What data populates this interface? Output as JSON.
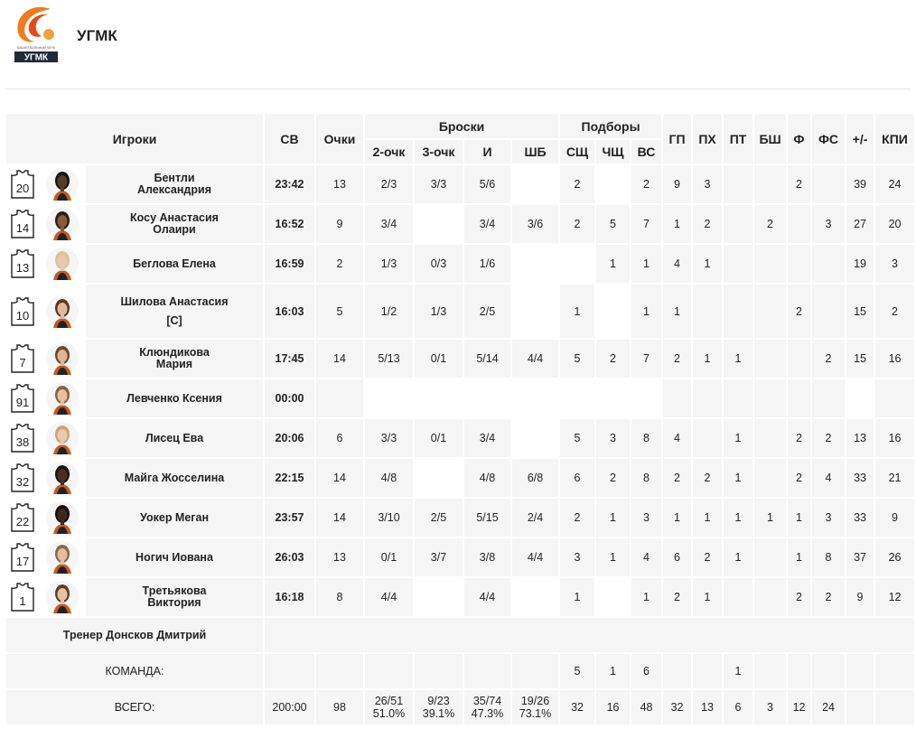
{
  "team": {
    "name": "УГМК",
    "logo_text_small": "БАСКЕТБОЛЬНЫЙ КЛУБ",
    "logo_text": "УГМК"
  },
  "columns": {
    "players": "Игроки",
    "min": "СВ",
    "pts": "Очки",
    "shots": "Броски",
    "rebounds": "Подборы",
    "two": "2-очк",
    "three": "3-очк",
    "fg": "И",
    "ft": "ШБ",
    "oreb": "СЩ",
    "dreb": "ЧЩ",
    "treb": "ВС",
    "ast": "ГП",
    "to": "ПХ",
    "stl": "ПТ",
    "blk": "БШ",
    "pf": "Ф",
    "fd": "ФС",
    "pm": "+/-",
    "eff": "КПИ"
  },
  "players": [
    {
      "num": "20",
      "name1": "Бентли",
      "name2": "Александрия",
      "captain": "",
      "min": "23:42",
      "pts": "13",
      "two": "2/3",
      "three": "3/3",
      "fg": "5/6",
      "ft": "",
      "oreb": "2",
      "dreb": "",
      "treb": "2",
      "ast": "9",
      "to": "3",
      "stl": "",
      "blk": "",
      "pf": "2",
      "fd": "",
      "pm": "39",
      "eff": "24",
      "skin": "#5a3a28",
      "hair": "#1a1410"
    },
    {
      "num": "14",
      "name1": "Косу Анастасия",
      "name2": "Олаири",
      "captain": "",
      "min": "16:52",
      "pts": "9",
      "two": "3/4",
      "three": "",
      "fg": "3/4",
      "ft": "3/6",
      "oreb": "2",
      "dreb": "5",
      "treb": "7",
      "ast": "1",
      "to": "2",
      "stl": "",
      "blk": "2",
      "pf": "",
      "fd": "3",
      "pm": "27",
      "eff": "20",
      "skin": "#8a5a3c",
      "hair": "#2a1e16"
    },
    {
      "num": "13",
      "name1": "Беглова Елена",
      "name2": "",
      "captain": "",
      "min": "16:59",
      "pts": "2",
      "two": "1/3",
      "three": "0/3",
      "fg": "1/6",
      "ft": "",
      "oreb": "",
      "dreb": "1",
      "treb": "1",
      "ast": "4",
      "to": "1",
      "stl": "",
      "blk": "",
      "pf": "",
      "fd": "",
      "pm": "19",
      "eff": "3",
      "skin": "#e8c8ae",
      "hair": "#d8c49a"
    },
    {
      "num": "10",
      "name1": "Шилова Анастасия",
      "name2": "",
      "captain": "[C]",
      "min": "16:03",
      "pts": "5",
      "two": "1/2",
      "three": "1/3",
      "fg": "2/5",
      "ft": "",
      "oreb": "1",
      "dreb": "",
      "treb": "1",
      "ast": "1",
      "to": "",
      "stl": "",
      "blk": "",
      "pf": "2",
      "fd": "",
      "pm": "15",
      "eff": "2",
      "skin": "#e2b89a",
      "hair": "#5a3a22"
    },
    {
      "num": "7",
      "name1": "Клюндикова",
      "name2": "Мария",
      "captain": "",
      "min": "17:45",
      "pts": "14",
      "two": "5/13",
      "three": "0/1",
      "fg": "5/14",
      "ft": "4/4",
      "oreb": "5",
      "dreb": "2",
      "treb": "7",
      "ast": "2",
      "to": "1",
      "stl": "1",
      "blk": "",
      "pf": "",
      "fd": "2",
      "pm": "15",
      "eff": "16",
      "skin": "#e0b496",
      "hair": "#6a4a30"
    },
    {
      "num": "91",
      "name1": "Левченко Ксения",
      "name2": "",
      "captain": "",
      "min": "00:00",
      "pts": "",
      "two": "",
      "three": "",
      "fg": "",
      "ft": "",
      "oreb": "",
      "dreb": "",
      "treb": "",
      "ast": "",
      "to": "",
      "stl": "",
      "blk": "",
      "pf": "",
      "fd": "",
      "pm": "",
      "eff": "",
      "skin": "#e6c0a2",
      "hair": "#8a6240"
    },
    {
      "num": "38",
      "name1": "Лисец Ева",
      "name2": "",
      "captain": "",
      "min": "20:06",
      "pts": "6",
      "two": "3/3",
      "three": "0/1",
      "fg": "3/4",
      "ft": "",
      "oreb": "5",
      "dreb": "3",
      "treb": "8",
      "ast": "4",
      "to": "",
      "stl": "1",
      "blk": "",
      "pf": "2",
      "fd": "2",
      "pm": "13",
      "eff": "16",
      "skin": "#eacaae",
      "hair": "#c8a476"
    },
    {
      "num": "32",
      "name1": "Майга Жосселина",
      "name2": "",
      "captain": "",
      "min": "22:15",
      "pts": "14",
      "two": "4/8",
      "three": "",
      "fg": "4/8",
      "ft": "6/8",
      "oreb": "6",
      "dreb": "2",
      "treb": "8",
      "ast": "2",
      "to": "2",
      "stl": "1",
      "blk": "",
      "pf": "2",
      "fd": "4",
      "pm": "33",
      "eff": "21",
      "skin": "#4a2e20",
      "hair": "#1a1410"
    },
    {
      "num": "22",
      "name1": "Уокер Меган",
      "name2": "",
      "captain": "",
      "min": "23:57",
      "pts": "14",
      "two": "3/10",
      "three": "2/5",
      "fg": "5/15",
      "ft": "2/4",
      "oreb": "2",
      "dreb": "1",
      "treb": "3",
      "ast": "1",
      "to": "1",
      "stl": "1",
      "blk": "1",
      "pf": "1",
      "fd": "3",
      "pm": "33",
      "eff": "9",
      "skin": "#3e281c",
      "hair": "#121010"
    },
    {
      "num": "17",
      "name1": "Ногич Иована",
      "name2": "",
      "captain": "",
      "min": "26:03",
      "pts": "13",
      "two": "0/1",
      "three": "3/7",
      "fg": "3/8",
      "ft": "4/4",
      "oreb": "3",
      "dreb": "1",
      "treb": "4",
      "ast": "6",
      "to": "2",
      "stl": "1",
      "blk": "",
      "pf": "1",
      "fd": "8",
      "pm": "37",
      "eff": "26",
      "skin": "#e4bea0",
      "hair": "#8a6a44"
    },
    {
      "num": "1",
      "name1": "Третьякова",
      "name2": "Виктория",
      "captain": "",
      "min": "16:18",
      "pts": "8",
      "two": "4/4",
      "three": "",
      "fg": "4/4",
      "ft": "",
      "oreb": "1",
      "dreb": "",
      "treb": "1",
      "ast": "2",
      "to": "1",
      "stl": "",
      "blk": "",
      "pf": "2",
      "fd": "2",
      "pm": "9",
      "eff": "12",
      "skin": "#e6c2a4",
      "hair": "#5a3e28"
    }
  ],
  "coach": {
    "label": "Тренер Донсков Дмитрий"
  },
  "team_row": {
    "label": "КОМАНДА:",
    "oreb": "5",
    "dreb": "1",
    "treb": "6",
    "stl": "1"
  },
  "total_row": {
    "label": "ВСЕГО:",
    "min": "200:00",
    "pts": "98",
    "two": "26/51",
    "two_pct": "51.0%",
    "three": "9/23",
    "three_pct": "39.1%",
    "fg": "35/74",
    "fg_pct": "47.3%",
    "ft": "19/26",
    "ft_pct": "73.1%",
    "oreb": "32",
    "dreb": "16",
    "treb": "48",
    "ast": "32",
    "to": "13",
    "stl": "6",
    "blk": "3",
    "pf": "12",
    "fd": "24"
  }
}
